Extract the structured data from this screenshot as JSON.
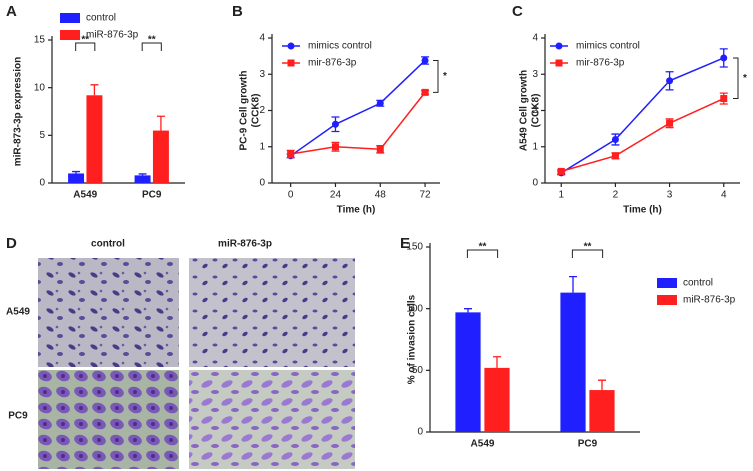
{
  "chart_data": [
    {
      "panel": "A",
      "type": "bar",
      "ylabel": [
        "miR-873-3p expression"
      ],
      "categories": [
        "A549",
        "PC9"
      ],
      "series": [
        {
          "name": "control",
          "color": "#1f1fff",
          "values": [
            1.0,
            0.8
          ],
          "errors": [
            0.2,
            0.15
          ]
        },
        {
          "name": "miR-876-3p",
          "color": "#ff1f1f",
          "values": [
            9.2,
            5.5
          ],
          "errors": [
            1.1,
            1.5
          ]
        }
      ],
      "ylim": [
        0,
        15
      ],
      "yticks": [
        0,
        5,
        10,
        15
      ],
      "significance": [
        "**",
        "**"
      ],
      "legend": "top"
    },
    {
      "panel": "B",
      "type": "line",
      "xlabel": "Time (h)",
      "ylabel": [
        "PC-9 Cell growth",
        "(CCK8)"
      ],
      "x": [
        0,
        24,
        48,
        72
      ],
      "series": [
        {
          "name": "mimics control",
          "color": "#1f1fff",
          "marker": "circle",
          "values": [
            0.75,
            1.62,
            2.2,
            3.38
          ],
          "errors": [
            0.05,
            0.2,
            0.08,
            0.1
          ]
        },
        {
          "name": "mir-876-3p",
          "color": "#ff1f1f",
          "marker": "square",
          "values": [
            0.8,
            1.0,
            0.93,
            2.5
          ],
          "errors": [
            0.1,
            0.12,
            0.1,
            0.05
          ]
        }
      ],
      "xlim": [
        -10,
        80
      ],
      "xticks": [
        0,
        24,
        48,
        72
      ],
      "ylim": [
        0,
        4
      ],
      "yticks": [
        0,
        1,
        2,
        3,
        4
      ],
      "significance": "*",
      "legend": "upper left"
    },
    {
      "panel": "C",
      "type": "line",
      "xlabel": "Time (h)",
      "ylabel": [
        "A549 Cell growth",
        "(CCK8)"
      ],
      "x": [
        1,
        2,
        3,
        4
      ],
      "series": [
        {
          "name": "mimics control",
          "color": "#1f1fff",
          "marker": "circle",
          "values": [
            0.28,
            1.2,
            2.82,
            3.45
          ],
          "errors": [
            0.05,
            0.15,
            0.25,
            0.25
          ]
        },
        {
          "name": "mir-876-3p",
          "color": "#ff1f1f",
          "marker": "square",
          "values": [
            0.32,
            0.75,
            1.65,
            2.33
          ],
          "errors": [
            0.05,
            0.08,
            0.12,
            0.15
          ]
        }
      ],
      "xlim": [
        0.7,
        4.3
      ],
      "xticks": [
        1,
        2,
        3,
        4
      ],
      "ylim": [
        0,
        4
      ],
      "yticks": [
        0,
        1,
        2,
        3,
        4
      ],
      "significance": "*",
      "legend": "upper left"
    },
    {
      "panel": "E",
      "type": "bar",
      "ylabel": [
        "% of invasion cells"
      ],
      "categories": [
        "A549",
        "PC9"
      ],
      "series": [
        {
          "name": "control",
          "color": "#1f1fff",
          "values": [
            97,
            113
          ],
          "errors": [
            3,
            13
          ]
        },
        {
          "name": "miR-876-3p",
          "color": "#ff1f1f",
          "values": [
            52,
            34
          ],
          "errors": [
            9,
            8
          ]
        }
      ],
      "ylim": [
        0,
        150
      ],
      "yticks": [
        0,
        50,
        100,
        150
      ],
      "significance": [
        "**",
        "**"
      ],
      "legend": "right"
    }
  ],
  "images": {
    "panel": "D",
    "columns": [
      "control",
      "miR-876-3p"
    ],
    "rows": [
      "A549",
      "PC9"
    ]
  }
}
